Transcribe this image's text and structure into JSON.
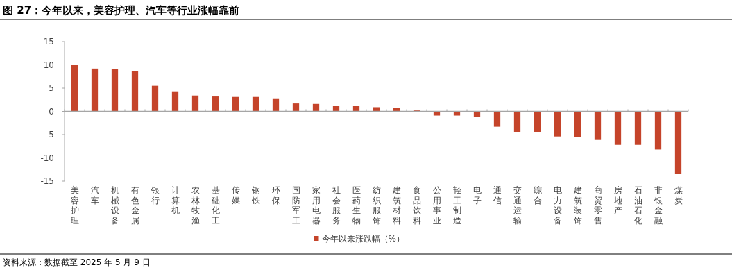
{
  "chart_data": {
    "type": "bar",
    "title": "图 27：今年以来，美容护理、汽车等行业涨幅靠前",
    "categories": [
      "美容护理",
      "汽车",
      "机械设备",
      "有色金属",
      "银行",
      "计算机",
      "农林牧渔",
      "基础化工",
      "传媒",
      "钢铁",
      "环保",
      "国防军工",
      "家用电器",
      "社会服务",
      "医药生物",
      "纺织服饰",
      "建筑材料",
      "食品饮料",
      "公用事业",
      "轻工制造",
      "电子",
      "通信",
      "交通运输",
      "综合",
      "电力设备",
      "建筑装饰",
      "商贸零售",
      "房地产",
      "石油石化",
      "非银金融",
      "煤炭"
    ],
    "series": [
      {
        "name": "今年以来涨跌幅（%）",
        "color": "#c5442a",
        "values": [
          10.0,
          9.2,
          9.1,
          8.7,
          5.5,
          4.3,
          3.4,
          3.2,
          3.1,
          3.1,
          2.8,
          1.7,
          1.6,
          1.2,
          1.2,
          0.9,
          0.7,
          0.2,
          -0.9,
          -0.9,
          -1.2,
          -3.3,
          -4.4,
          -4.4,
          -5.4,
          -5.5,
          -6.0,
          -7.2,
          -7.2,
          -8.2,
          -13.4
        ]
      }
    ],
    "ylim": [
      -15,
      15
    ],
    "yticks": [
      -15,
      -10,
      -5,
      0,
      5,
      10,
      15
    ],
    "legend": "bottom",
    "annotations": [
      "资料来源：数据截至 2025 年 5 月 9 日"
    ]
  }
}
